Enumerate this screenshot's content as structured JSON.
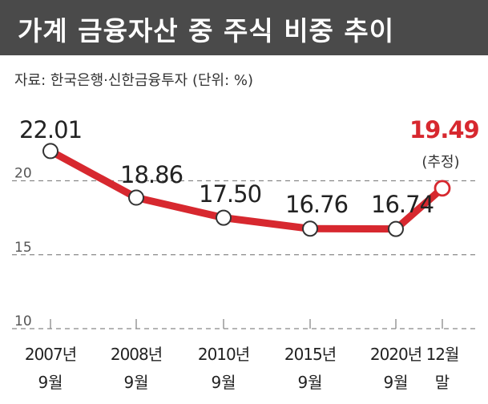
{
  "header": {
    "title": "가계 금융자산 중 주식 비중 추이"
  },
  "source_note": "자료: 한국은행·신한금융투자 (단위: %)",
  "colors": {
    "line": "#d7282f",
    "highlight_label": "#d7282f",
    "title_bg": "#4a4a4a",
    "grid": "#888888"
  },
  "chart_data": {
    "type": "line",
    "title": "가계 금융자산 중 주식 비중 추이",
    "unit": "%",
    "categories": [
      [
        "2007년",
        "9월"
      ],
      [
        "2008년",
        "9월"
      ],
      [
        "2010년",
        "9월"
      ],
      [
        "2015년",
        "9월"
      ],
      [
        "2020년",
        "9월"
      ],
      [
        "12월",
        "말"
      ]
    ],
    "values": [
      22.01,
      18.86,
      17.5,
      16.76,
      16.74,
      19.49
    ],
    "value_labels": [
      "22.01",
      "18.86",
      "17.50",
      "16.76",
      "16.74",
      "19.49"
    ],
    "annotation": "(추정)",
    "y_ticks": [
      10,
      15,
      20
    ],
    "ylim": [
      10,
      25
    ],
    "grid": "dashed horizontal"
  }
}
